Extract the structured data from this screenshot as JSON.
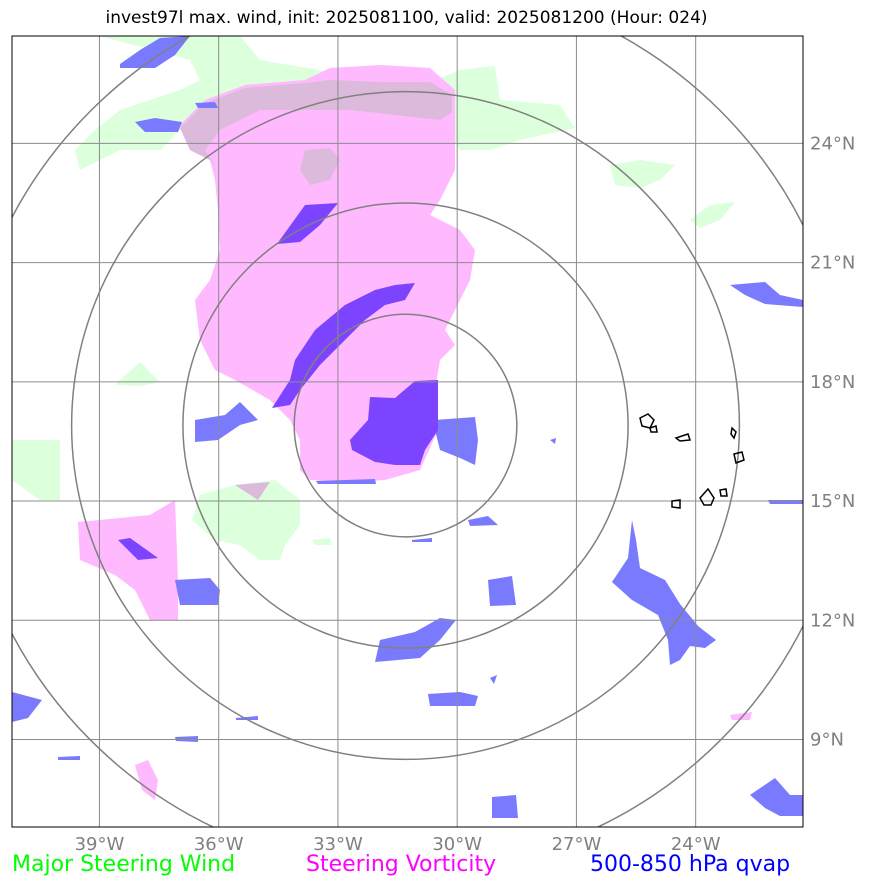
{
  "title": "invest97l max. wind, init: 2025081100, valid: 2025081200 (Hour: 024)",
  "legend": [
    {
      "label": "Major Steering Wind",
      "color": "#00ff00"
    },
    {
      "label": "Steering Vorticity",
      "color": "#ff00ff"
    },
    {
      "label": "500-850 hPa qvap",
      "color": "#0000ff"
    }
  ],
  "colors": {
    "steering_wind_fill": "#dcffdc",
    "vorticity_fill": "#ffb9ff",
    "qvap_fill": "#7a7aff",
    "qvap_strong_fill": "#7c44ff",
    "overlap_fill": "#dcbadc",
    "grid": "#8c8c8c",
    "range_rings": "#808080",
    "coastline": "#000000",
    "tick_label": "#808080"
  },
  "chart_data": {
    "type": "map",
    "title": "invest97l max. wind, init: 2025081100, valid: 2025081200 (Hour: 024)",
    "x_ticks": [
      -39,
      -36,
      -33,
      -30,
      -27,
      -24
    ],
    "x_tick_labels": [
      "39°W",
      "36°W",
      "33°W",
      "30°W",
      "27°W",
      "24°W"
    ],
    "y_ticks": [
      24,
      21,
      18,
      15,
      12,
      9
    ],
    "y_tick_labels": [
      "24°N",
      "21°N",
      "18°N",
      "15°N",
      "12°N",
      "9°N"
    ],
    "lon_range": [
      -41.2,
      -21.3
    ],
    "lat_range": [
      6.8,
      26.7
    ],
    "grid": true,
    "storm_center": {
      "lon": -31.3,
      "lat": 16.9
    },
    "range_ring_radii_deg": [
      2.8,
      5.6,
      8.4,
      11.2
    ],
    "series": [
      {
        "name": "Major Steering Wind",
        "value_kind": "filled contour"
      },
      {
        "name": "Steering Vorticity",
        "value_kind": "filled contour"
      },
      {
        "name": "500-850 hPa qvap",
        "value_kind": "filled contour"
      }
    ]
  }
}
